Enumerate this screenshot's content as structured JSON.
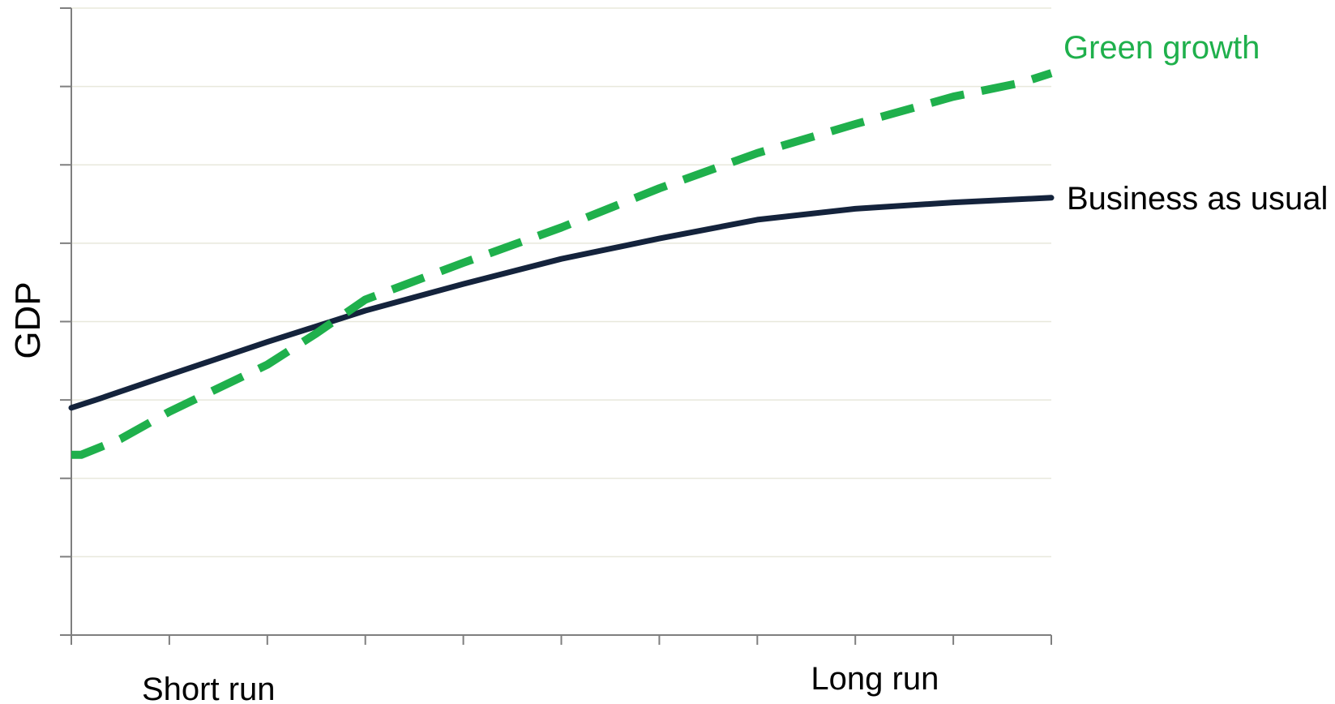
{
  "chart_data": {
    "type": "line",
    "title": "",
    "xlabel": "",
    "ylabel": "GDP",
    "xlim": [
      0,
      10
    ],
    "ylim": [
      0,
      8
    ],
    "grid": true,
    "x_annotations": [
      {
        "label": "Short run",
        "x": 1.4
      },
      {
        "label": "Long run",
        "x": 8.2
      }
    ],
    "series": [
      {
        "name": "Business as usual",
        "color": "#14233c",
        "style": "solid",
        "x": [
          0,
          0.25,
          1,
          2,
          2.5,
          3,
          4,
          5,
          6,
          7,
          8,
          9,
          10
        ],
        "y": [
          2.9,
          3.0,
          3.32,
          3.74,
          3.94,
          4.14,
          4.48,
          4.8,
          5.06,
          5.3,
          5.44,
          5.52,
          5.58
        ]
      },
      {
        "name": "Green growth",
        "color": "#1fb04c",
        "style": "dashed",
        "x": [
          0,
          0.1,
          0.5,
          1,
          2,
          2.5,
          3,
          4,
          5,
          6,
          7,
          8,
          9,
          9.7,
          10
        ],
        "y": [
          2.3,
          2.3,
          2.5,
          2.85,
          3.45,
          3.85,
          4.28,
          4.75,
          5.2,
          5.7,
          6.15,
          6.52,
          6.87,
          7.05,
          7.17
        ]
      }
    ]
  }
}
